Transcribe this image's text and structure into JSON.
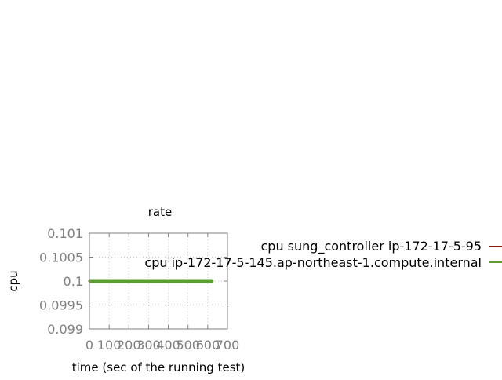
{
  "chart_data": {
    "type": "line",
    "title": "rate",
    "xlabel": "time (sec of the running test)",
    "ylabel": "cpu",
    "xlim": [
      0,
      700
    ],
    "ylim": [
      0.099,
      0.101
    ],
    "x_ticks": [
      0,
      100,
      200,
      300,
      400,
      500,
      600,
      700
    ],
    "y_ticks": [
      "0.099",
      "0.0995",
      "0.1",
      "0.1005",
      "0.101"
    ],
    "grid": true,
    "legend_placement": "right",
    "series": [
      {
        "name": "cpu sung_controller ip-172-17-5-95",
        "color": "#8b1a0e",
        "x": [
          0,
          5
        ],
        "y": [
          0.1,
          0.1
        ]
      },
      {
        "name": "cpu ip-172-17-5-145.ap-northeast-1.compute.internal",
        "color": "#5e9c36",
        "x": [
          5,
          620
        ],
        "y": [
          0.1,
          0.1
        ]
      }
    ]
  }
}
